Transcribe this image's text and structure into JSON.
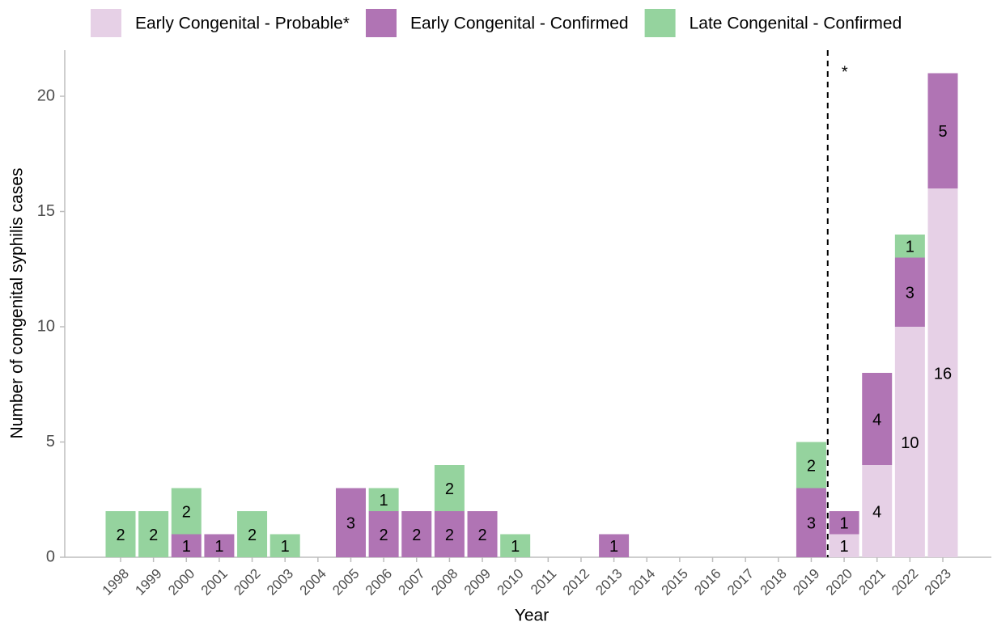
{
  "chart_data": {
    "type": "stacked-bar",
    "x_label": "Year",
    "y_label": "Number of congenital syphilis cases",
    "categories": [
      "1998",
      "1999",
      "2000",
      "2001",
      "2002",
      "2003",
      "2004",
      "2005",
      "2006",
      "2007",
      "2008",
      "2009",
      "2010",
      "2011",
      "2012",
      "2013",
      "2014",
      "2015",
      "2016",
      "2017",
      "2018",
      "2019",
      "2020",
      "2021",
      "2022",
      "2023"
    ],
    "series": [
      {
        "name": "Early Congenital - Probable*",
        "color": "#e6d0e6",
        "values": [
          0,
          0,
          0,
          0,
          0,
          0,
          0,
          0,
          0,
          0,
          0,
          0,
          0,
          0,
          0,
          0,
          0,
          0,
          0,
          0,
          0,
          0,
          1,
          4,
          10,
          16
        ]
      },
      {
        "name": "Early Congenital - Confirmed",
        "color": "#b074b4",
        "values": [
          0,
          0,
          1,
          1,
          0,
          0,
          0,
          3,
          2,
          2,
          2,
          2,
          0,
          0,
          0,
          1,
          0,
          0,
          0,
          0,
          0,
          3,
          1,
          4,
          3,
          5
        ]
      },
      {
        "name": "Late Congenital - Confirmed",
        "color": "#95d39e",
        "values": [
          2,
          2,
          2,
          0,
          2,
          1,
          0,
          0,
          1,
          0,
          2,
          0,
          1,
          0,
          0,
          0,
          0,
          0,
          0,
          0,
          0,
          2,
          0,
          0,
          1,
          0
        ]
      }
    ],
    "ylim": [
      0,
      22
    ],
    "yticks": [
      0,
      5,
      10,
      15,
      20
    ],
    "legend": "top",
    "annotation": {
      "text": "*",
      "before_category": "2020"
    }
  }
}
